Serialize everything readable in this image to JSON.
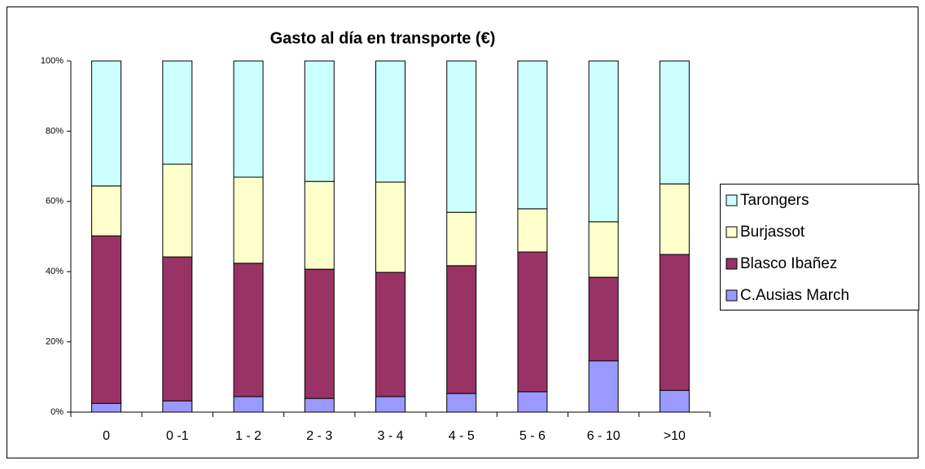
{
  "chart_data": {
    "type": "stacked_bar_100",
    "title": "Gasto al día en transporte (€)",
    "categories": [
      "0",
      "0 -1",
      "1 - 2",
      "2 - 3",
      "3 - 4",
      "4 - 5",
      "5 - 6",
      "6 - 10",
      ">10"
    ],
    "series": [
      {
        "name": "C.Ausias March",
        "color": "#9999ff",
        "values": [
          2.5,
          3.2,
          4.4,
          3.9,
          4.4,
          5.3,
          5.8,
          14.6,
          6.2
        ]
      },
      {
        "name": "Blasco Ibañez",
        "color": "#993366",
        "values": [
          47.7,
          41,
          38,
          36.8,
          35.4,
          36.4,
          39.8,
          23.8,
          38.7
        ]
      },
      {
        "name": "Burjassot",
        "color": "#ffffcc",
        "values": [
          14.2,
          26.4,
          24.5,
          25,
          25.7,
          15.2,
          12.3,
          15.8,
          20.1
        ]
      },
      {
        "name": "Tarongers",
        "color": "#ccffff",
        "values": [
          35.6,
          29.4,
          33.1,
          34.3,
          34.5,
          43.1,
          42.1,
          45.8,
          35
        ]
      }
    ],
    "ylim": [
      0,
      100
    ],
    "yticks": [
      {
        "value": 0,
        "label": "0%"
      },
      {
        "value": 20,
        "label": "20%"
      },
      {
        "value": 40,
        "label": "40%"
      },
      {
        "value": 60,
        "label": "60%"
      },
      {
        "value": 80,
        "label": "80%"
      },
      {
        "value": 100,
        "label": "100%"
      }
    ],
    "grid": false,
    "legend": "right"
  }
}
